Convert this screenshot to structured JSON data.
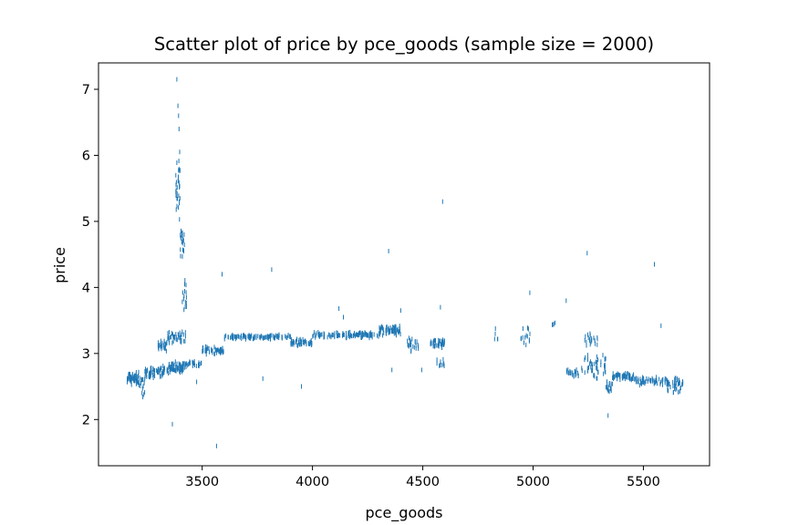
{
  "chart_data": {
    "type": "scatter",
    "title": "Scatter plot of price by pce_goods (sample size = 2000)",
    "xlabel": "pce_goods",
    "ylabel": "price",
    "xlim": [
      3030,
      5800
    ],
    "ylim": [
      1.3,
      7.4
    ],
    "xticks": [
      3500,
      4000,
      4500,
      5000,
      5500
    ],
    "yticks": [
      2,
      3,
      4,
      5,
      6,
      7
    ],
    "grid": false,
    "color": "#1f77b4",
    "marker": "vertical-tick",
    "clusters": [
      {
        "x_range": [
          3160,
          3210
        ],
        "y_center": 2.62,
        "spread": 0.12,
        "n": 60
      },
      {
        "x_range": [
          3200,
          3240
        ],
        "y_center": 2.55,
        "spread": 0.25,
        "n": 20
      },
      {
        "x_range": [
          3240,
          3330
        ],
        "y_center": 2.72,
        "spread": 0.1,
        "n": 70
      },
      {
        "x_range": [
          3300,
          3340
        ],
        "y_center": 3.12,
        "spread": 0.1,
        "n": 25
      },
      {
        "x_range": [
          3340,
          3420
        ],
        "y_center": 2.78,
        "spread": 0.1,
        "n": 70
      },
      {
        "x_range": [
          3340,
          3430
        ],
        "y_center": 3.25,
        "spread": 0.1,
        "n": 40
      },
      {
        "x_range": [
          3380,
          3400
        ],
        "y_center": 5.5,
        "spread": 0.5,
        "n": 30
      },
      {
        "x_range": [
          3400,
          3420
        ],
        "y_center": 4.7,
        "spread": 0.3,
        "n": 25
      },
      {
        "x_range": [
          3410,
          3430
        ],
        "y_center": 3.9,
        "spread": 0.3,
        "n": 15
      },
      {
        "x_range": [
          3420,
          3500
        ],
        "y_center": 2.84,
        "spread": 0.05,
        "n": 30
      },
      {
        "x_range": [
          3500,
          3600
        ],
        "y_center": 3.05,
        "spread": 0.07,
        "n": 50
      },
      {
        "x_range": [
          3600,
          3900
        ],
        "y_center": 3.25,
        "spread": 0.04,
        "n": 110
      },
      {
        "x_range": [
          3900,
          4000
        ],
        "y_center": 3.17,
        "spread": 0.06,
        "n": 50
      },
      {
        "x_range": [
          4000,
          4300
        ],
        "y_center": 3.28,
        "spread": 0.05,
        "n": 110
      },
      {
        "x_range": [
          4300,
          4400
        ],
        "y_center": 3.35,
        "spread": 0.08,
        "n": 70
      },
      {
        "x_range": [
          4430,
          4480
        ],
        "y_center": 3.12,
        "spread": 0.12,
        "n": 25
      },
      {
        "x_range": [
          4530,
          4600
        ],
        "y_center": 3.15,
        "spread": 0.08,
        "n": 40
      },
      {
        "x_range": [
          4560,
          4600
        ],
        "y_center": 2.85,
        "spread": 0.12,
        "n": 10
      },
      {
        "x_range": [
          4820,
          4840
        ],
        "y_center": 3.25,
        "spread": 0.15,
        "n": 5
      },
      {
        "x_range": [
          4940,
          4990
        ],
        "y_center": 3.25,
        "spread": 0.15,
        "n": 15
      },
      {
        "x_range": [
          5080,
          5100
        ],
        "y_center": 3.45,
        "spread": 0.05,
        "n": 5
      },
      {
        "x_range": [
          5150,
          5210
        ],
        "y_center": 2.7,
        "spread": 0.07,
        "n": 25
      },
      {
        "x_range": [
          5220,
          5330
        ],
        "y_center": 2.8,
        "spread": 0.2,
        "n": 50
      },
      {
        "x_range": [
          5230,
          5300
        ],
        "y_center": 3.2,
        "spread": 0.15,
        "n": 20
      },
      {
        "x_range": [
          5330,
          5360
        ],
        "y_center": 2.5,
        "spread": 0.1,
        "n": 20
      },
      {
        "x_range": [
          5360,
          5460
        ],
        "y_center": 2.65,
        "spread": 0.06,
        "n": 60
      },
      {
        "x_range": [
          5460,
          5670
        ],
        "y_center": 2.58,
        "spread": 0.07,
        "n": 80
      },
      {
        "x_range": [
          5600,
          5680
        ],
        "y_center": 2.5,
        "spread": 0.12,
        "n": 30
      }
    ],
    "outliers": [
      {
        "x": 3385,
        "y": 7.15
      },
      {
        "x": 3390,
        "y": 6.75
      },
      {
        "x": 3393,
        "y": 6.6
      },
      {
        "x": 3395,
        "y": 6.4
      },
      {
        "x": 3398,
        "y": 6.05
      },
      {
        "x": 3365,
        "y": 1.93
      },
      {
        "x": 3565,
        "y": 1.6
      },
      {
        "x": 3590,
        "y": 4.2
      },
      {
        "x": 3815,
        "y": 4.27
      },
      {
        "x": 3775,
        "y": 2.62
      },
      {
        "x": 3950,
        "y": 2.5
      },
      {
        "x": 4120,
        "y": 3.68
      },
      {
        "x": 4140,
        "y": 3.55
      },
      {
        "x": 4345,
        "y": 4.55
      },
      {
        "x": 4360,
        "y": 2.75
      },
      {
        "x": 4400,
        "y": 3.65
      },
      {
        "x": 4590,
        "y": 5.3
      },
      {
        "x": 4580,
        "y": 3.7
      },
      {
        "x": 4985,
        "y": 3.92
      },
      {
        "x": 5150,
        "y": 3.8
      },
      {
        "x": 5245,
        "y": 4.52
      },
      {
        "x": 5550,
        "y": 4.35
      },
      {
        "x": 5340,
        "y": 2.06
      },
      {
        "x": 5580,
        "y": 3.42
      },
      {
        "x": 3475,
        "y": 2.57
      },
      {
        "x": 4495,
        "y": 2.75
      }
    ]
  }
}
